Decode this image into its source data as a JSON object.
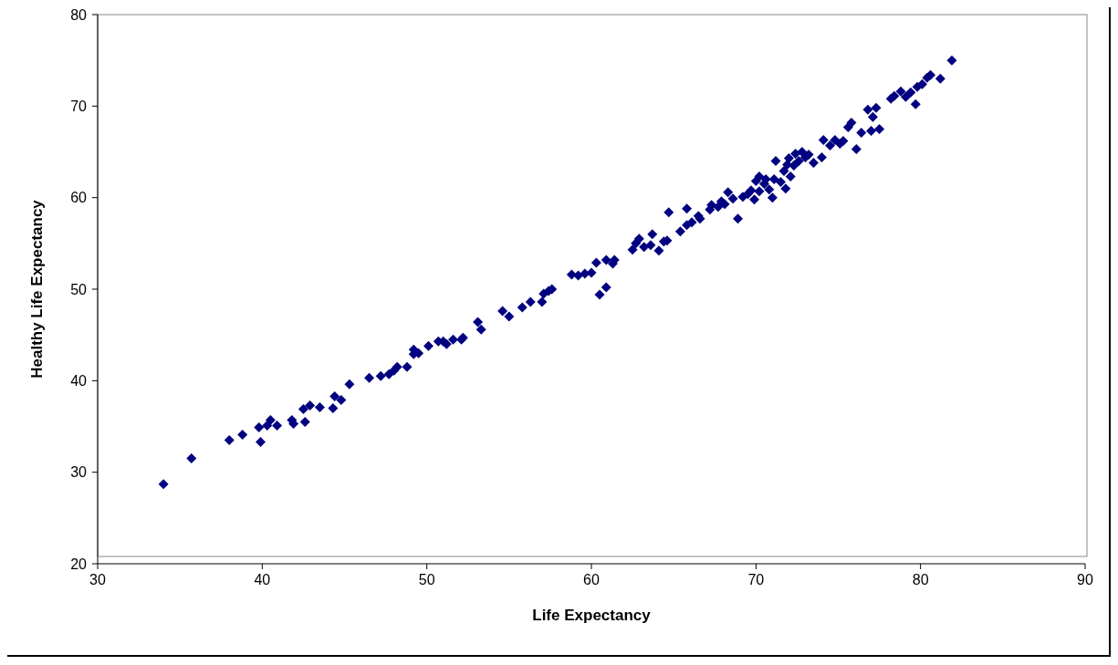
{
  "chart_data": {
    "type": "scatter",
    "xlabel": "Life Expectancy",
    "ylabel": "Healthy Life Expectancy",
    "xlim": [
      30,
      90
    ],
    "ylim": [
      20,
      80
    ],
    "xticks": [
      30,
      40,
      50,
      60,
      70,
      80,
      90
    ],
    "yticks": [
      20,
      30,
      40,
      50,
      60,
      70,
      80
    ],
    "grid": false,
    "legend": false,
    "marker": "diamond",
    "series": [
      {
        "color": "#000080",
        "x": [
          34.0,
          35.7,
          38.0,
          38.8,
          39.8,
          39.9,
          40.3,
          40.5,
          40.9,
          41.8,
          41.9,
          42.5,
          42.6,
          42.9,
          43.5,
          44.3,
          44.4,
          44.8,
          45.3,
          46.5,
          47.2,
          47.7,
          48.0,
          48.2,
          48.8,
          49.2,
          49.2,
          49.5,
          50.1,
          50.7,
          51.0,
          51.2,
          51.6,
          52.1,
          52.2,
          53.1,
          53.3,
          54.6,
          55.0,
          55.8,
          56.3,
          57.0,
          57.1,
          57.4,
          57.6,
          58.8,
          59.2,
          59.6,
          60.0,
          60.3,
          60.5,
          60.9,
          60.9,
          61.3,
          61.4,
          62.5,
          62.7,
          62.9,
          63.2,
          63.6,
          63.7,
          64.1,
          64.4,
          64.6,
          64.7,
          65.4,
          65.8,
          65.8,
          66.1,
          66.5,
          66.6,
          67.2,
          67.3,
          67.7,
          67.9,
          68.1,
          68.3,
          68.6,
          68.9,
          69.2,
          69.5,
          69.7,
          69.9,
          70.0,
          70.2,
          70.2,
          70.5,
          70.6,
          70.8,
          71.0,
          71.1,
          71.2,
          71.5,
          71.7,
          71.8,
          71.9,
          72.0,
          72.1,
          72.3,
          72.4,
          72.6,
          72.8,
          73.0,
          73.2,
          73.5,
          74.0,
          74.1,
          74.5,
          74.8,
          75.1,
          75.3,
          75.6,
          75.8,
          76.1,
          76.4,
          76.8,
          77.0,
          77.1,
          77.3,
          77.5,
          78.2,
          78.4,
          78.8,
          79.1,
          79.4,
          79.7,
          79.8,
          80.1,
          80.4,
          80.6,
          81.2,
          81.9
        ],
        "values": [
          28.7,
          31.5,
          33.5,
          34.1,
          34.9,
          33.3,
          35.1,
          35.7,
          35.1,
          35.7,
          35.3,
          36.9,
          35.5,
          37.3,
          37.1,
          37.0,
          38.3,
          37.9,
          39.6,
          40.3,
          40.5,
          40.7,
          41.1,
          41.5,
          41.5,
          42.9,
          43.4,
          43.0,
          43.8,
          44.3,
          44.3,
          44.0,
          44.5,
          44.5,
          44.7,
          46.4,
          45.6,
          47.6,
          47.0,
          48.0,
          48.6,
          48.6,
          49.5,
          49.8,
          50.0,
          51.6,
          51.5,
          51.7,
          51.8,
          52.9,
          49.4,
          50.2,
          53.2,
          52.8,
          53.2,
          54.3,
          55.0,
          55.5,
          54.6,
          54.8,
          56.0,
          54.2,
          55.2,
          55.3,
          58.4,
          56.3,
          57.0,
          58.8,
          57.3,
          58.0,
          57.7,
          58.7,
          59.2,
          59.0,
          59.6,
          59.3,
          60.6,
          59.9,
          57.7,
          60.1,
          60.4,
          60.8,
          59.8,
          61.8,
          60.7,
          62.3,
          61.5,
          62.0,
          60.9,
          60.0,
          62.0,
          64.0,
          61.7,
          62.9,
          61.0,
          63.6,
          64.3,
          62.3,
          63.5,
          64.8,
          64.0,
          65.0,
          64.4,
          64.7,
          63.8,
          64.4,
          66.3,
          65.7,
          66.3,
          65.9,
          66.2,
          67.7,
          68.2,
          65.3,
          67.1,
          69.6,
          67.3,
          68.8,
          69.8,
          67.5,
          70.8,
          71.1,
          71.6,
          71.0,
          71.5,
          70.2,
          72.1,
          72.4,
          73.1,
          73.4,
          73.0,
          75.0
        ]
      }
    ]
  }
}
